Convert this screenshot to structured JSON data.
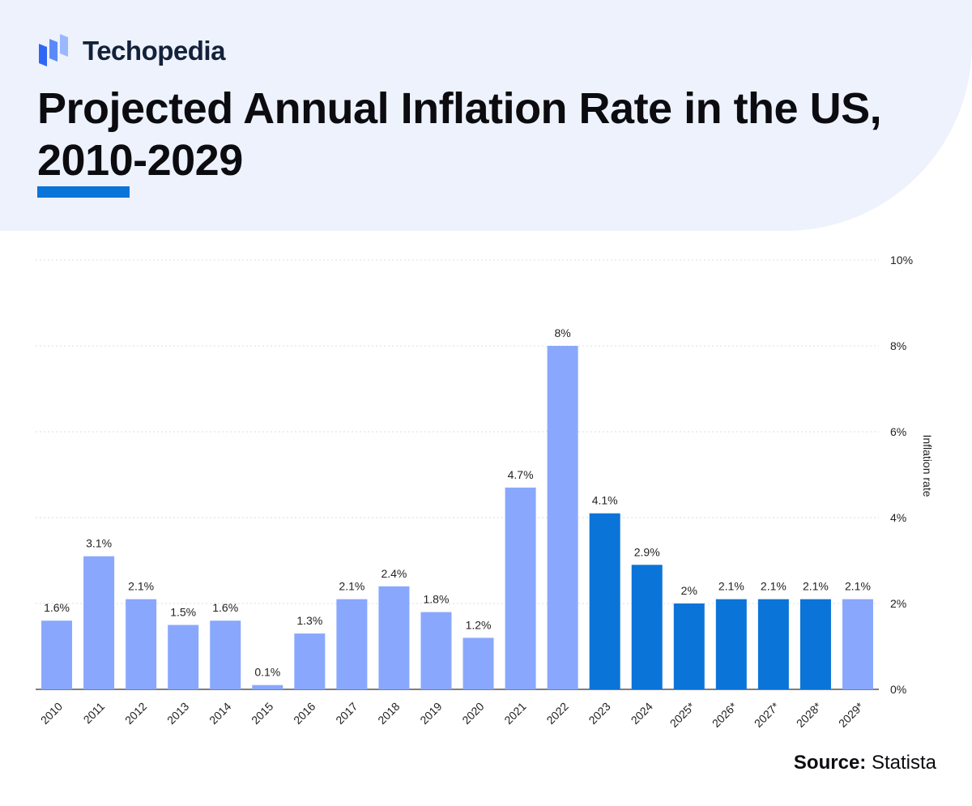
{
  "brand": {
    "name": "Techopedia"
  },
  "title": "Projected Annual Inflation Rate in the US, 2010-2029",
  "source": {
    "label": "Source:",
    "value": "Statista"
  },
  "colors": {
    "actual": "#89a8fd",
    "projected": "#0b74d8",
    "accent": "#0b74d8",
    "header_bg": "#edf2fd"
  },
  "chart_data": {
    "type": "bar",
    "title": "Projected Annual Inflation Rate in the US, 2010-2029",
    "xlabel": "",
    "ylabel": "Inflation rate",
    "ylim": [
      0,
      10
    ],
    "yticks": [
      "0%",
      "2%",
      "4%",
      "6%",
      "8%",
      "10%"
    ],
    "categories": [
      "2010",
      "2011",
      "2012",
      "2013",
      "2014",
      "2015",
      "2016",
      "2017",
      "2018",
      "2019",
      "2020",
      "2021",
      "2022",
      "2023",
      "2024",
      "2025*",
      "2026*",
      "2027*",
      "2028*",
      "2029*"
    ],
    "values": [
      1.6,
      3.1,
      2.1,
      1.5,
      1.6,
      0.1,
      1.3,
      2.1,
      2.4,
      1.8,
      1.2,
      4.7,
      8,
      4.1,
      2.9,
      2,
      2.1,
      2.1,
      2.1,
      2.1
    ],
    "value_labels": [
      "1.6%",
      "3.1%",
      "2.1%",
      "1.5%",
      "1.6%",
      "0.1%",
      "1.3%",
      "2.1%",
      "2.4%",
      "1.8%",
      "1.2%",
      "4.7%",
      "8%",
      "4.1%",
      "2.9%",
      "2%",
      "2.1%",
      "2.1%",
      "2.1%",
      "2.1%"
    ],
    "bar_color_group": [
      "actual",
      "actual",
      "actual",
      "actual",
      "actual",
      "actual",
      "actual",
      "actual",
      "actual",
      "actual",
      "actual",
      "actual",
      "actual",
      "projected",
      "projected",
      "projected",
      "projected",
      "projected",
      "projected",
      "actual"
    ],
    "grid": true,
    "y_axis_position": "right"
  }
}
